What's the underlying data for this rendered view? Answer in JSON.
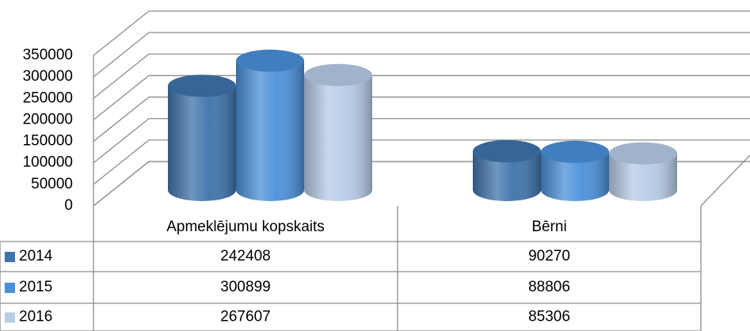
{
  "chart_data": {
    "type": "bar3d",
    "categories": [
      "Apmeklējumu kopskaits",
      "Bērni"
    ],
    "series": [
      {
        "name": "2014",
        "color": "#3e73ab",
        "values": [
          242408,
          90270
        ]
      },
      {
        "name": "2015",
        "color": "#4a90d9",
        "values": [
          300899,
          88806
        ]
      },
      {
        "name": "2016",
        "color": "#b7cce6",
        "values": [
          267607,
          85306
        ]
      }
    ],
    "ylim": [
      0,
      350000
    ],
    "yticks": [
      0,
      50000,
      100000,
      150000,
      200000,
      250000,
      300000,
      350000
    ],
    "grid": true
  }
}
